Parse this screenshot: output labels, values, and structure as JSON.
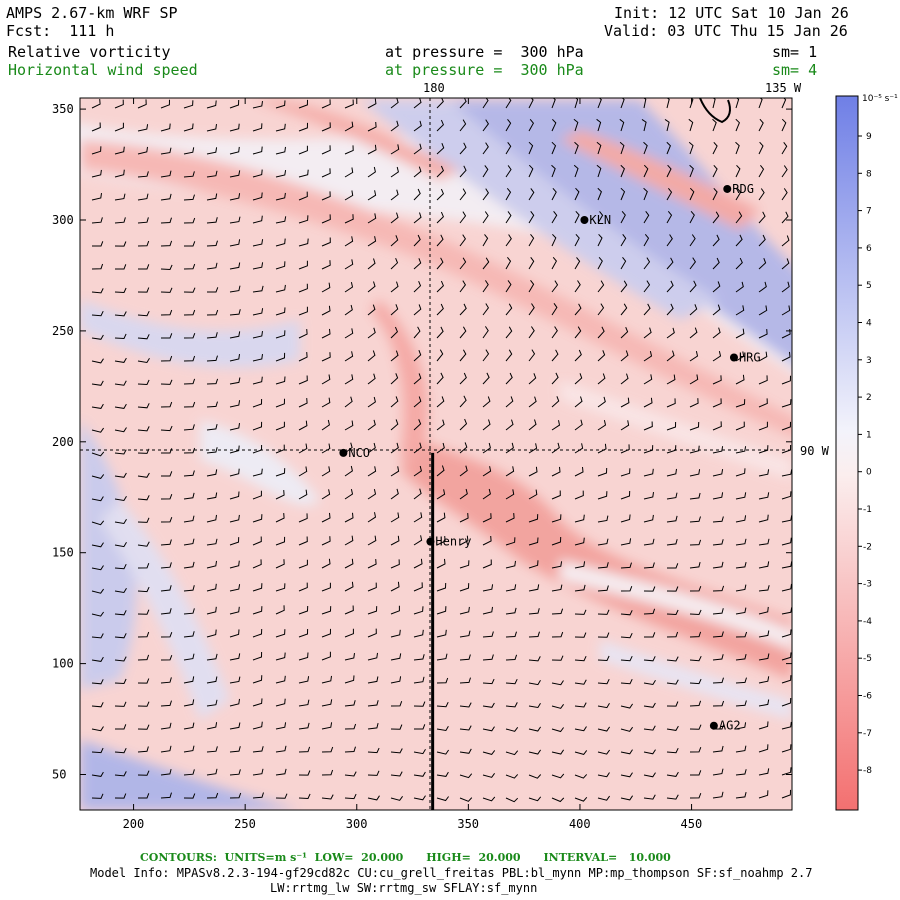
{
  "header": {
    "model": "AMPS 2.67-km WRF SP",
    "forecast": "Fcst:  111 h",
    "init": "Init: 12 UTC Sat 10 Jan 26",
    "valid": "Valid: 03 UTC Thu 15 Jan 26",
    "field1_name": "Relative vorticity",
    "field1_level": "at pressure =  300 hPa",
    "field1_sm": "sm= 1",
    "field2_name": "Horizontal wind speed",
    "field2_level": "at pressure =  300 hPa",
    "field2_sm": "sm= 4"
  },
  "map": {
    "meridian_label": "180",
    "meridian2_label": "135 W",
    "parallel_label": "90 W",
    "x_ticks": [
      "200",
      "250",
      "300",
      "350",
      "400",
      "450"
    ],
    "x_tick_values": [
      200,
      250,
      300,
      350,
      400,
      450
    ],
    "y_ticks": [
      "50",
      "100",
      "150",
      "200",
      "250",
      "300",
      "350"
    ],
    "y_tick_values": [
      50,
      100,
      150,
      200,
      250,
      300,
      350
    ],
    "x_range": [
      176,
      495
    ],
    "y_range": [
      34,
      355
    ],
    "stations": [
      {
        "name": "NCO",
        "x": 294,
        "y": 195
      },
      {
        "name": "Henry",
        "x": 333,
        "y": 155
      },
      {
        "name": "KLN",
        "x": 402,
        "y": 300
      },
      {
        "name": "RDG",
        "x": 466,
        "y": 314
      },
      {
        "name": "HRG",
        "x": 469,
        "y": 238
      },
      {
        "name": "AG2",
        "x": 460,
        "y": 72
      }
    ],
    "cross_section": {
      "x": 334,
      "y_start": 34,
      "y_end": 195
    }
  },
  "colorbar": {
    "units": "10⁻⁵ s⁻¹",
    "labels": [
      "9",
      "8",
      "7",
      "6",
      "5",
      "4",
      "3",
      "2",
      "1",
      "0",
      "-1",
      "-2",
      "-3",
      "-4",
      "-5",
      "-6",
      "-7",
      "-8"
    ],
    "positive_color": "#5a6ee0",
    "negative_color": "#f06a6a"
  },
  "footer": {
    "contours": "CONTOURS:  UNITS=m s⁻¹  LOW=  20.000      HIGH=  20.000      INTERVAL=   10.000",
    "model_info": "Model Info: MPASv8.2.3-194-gf29cd82c CU:cu_grell_freitas PBL:bl_mynn MP:mp_thompson SF:sf_noahmp 2.7",
    "model_info2": "LW:rrtmg_lw SW:rrtmg_sw SFLAY:sf_mynn"
  }
}
